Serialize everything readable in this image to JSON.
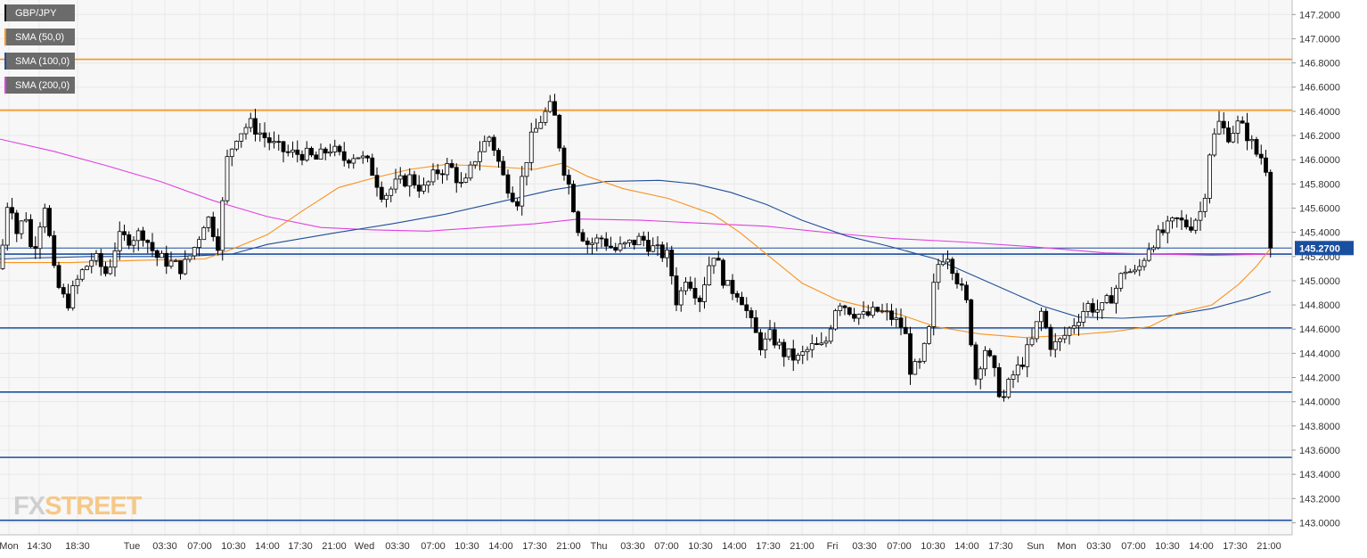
{
  "legend": [
    {
      "label": "GBP/JPY",
      "color": "#111111"
    },
    {
      "label": "SMA (50,0)",
      "color": "#f7931e"
    },
    {
      "label": "SMA (100,0)",
      "color": "#1f4e9b"
    },
    {
      "label": "SMA (200,0)",
      "color": "#e040e0"
    }
  ],
  "logo": {
    "part1": "FX",
    "part2": "STREET"
  },
  "current_price_label": "145.2700",
  "colors": {
    "resistance": "#f7931e",
    "support": "#1a4fa0",
    "sma50": "#f7931e",
    "sma100": "#1f4e9b",
    "sma200": "#e040e0",
    "candle_up": "#ffffff",
    "candle_down": "#000000",
    "grid": "#e8e8e8",
    "price_tag": "#1a4fa0"
  },
  "chart_data": {
    "type": "candlestick",
    "symbol": "GBP/JPY",
    "ylim": [
      142.9,
      147.32
    ],
    "y_ticks": [
      "147.2000",
      "147.0000",
      "146.8000",
      "146.6000",
      "146.4000",
      "146.2000",
      "146.0000",
      "145.8000",
      "145.6000",
      "145.4000",
      "145.2000",
      "145.0000",
      "144.8000",
      "144.6000",
      "144.4000",
      "144.2000",
      "144.0000",
      "143.8000",
      "143.6000",
      "143.4000",
      "143.2000",
      "143.0000"
    ],
    "x_ticks": [
      "Mon",
      "14:30",
      "18:30",
      "Tue",
      "03:30",
      "07:00",
      "10:30",
      "14:00",
      "17:30",
      "21:00",
      "Wed",
      "03:30",
      "07:00",
      "10:30",
      "14:00",
      "17:30",
      "21:00",
      "Thu",
      "03:30",
      "07:00",
      "10:30",
      "14:00",
      "17:30",
      "21:00",
      "Fri",
      "03:30",
      "07:00",
      "10:30",
      "14:00",
      "17:30",
      "Sun",
      "Mon",
      "03:30",
      "07:00",
      "10:30",
      "14:00",
      "17:30",
      "21:00"
    ],
    "resistance_levels": [
      146.83,
      146.41
    ],
    "support_levels": [
      145.22,
      144.61,
      144.08,
      143.54,
      143.02
    ],
    "current_price": 145.27,
    "price_path": [
      [
        0,
        145.1
      ],
      [
        10,
        145.75
      ],
      [
        20,
        145.35
      ],
      [
        28,
        145.6
      ],
      [
        36,
        145.2
      ],
      [
        50,
        145.65
      ],
      [
        62,
        145.0
      ],
      [
        75,
        144.8
      ],
      [
        90,
        145.05
      ],
      [
        105,
        145.2
      ],
      [
        120,
        145.05
      ],
      [
        132,
        145.35
      ],
      [
        145,
        145.35
      ],
      [
        160,
        145.4
      ],
      [
        175,
        145.2
      ],
      [
        190,
        145.15
      ],
      [
        205,
        145.1
      ],
      [
        220,
        145.3
      ],
      [
        232,
        145.55
      ],
      [
        245,
        145.3
      ],
      [
        255,
        146.0
      ],
      [
        265,
        146.2
      ],
      [
        280,
        146.3
      ],
      [
        295,
        146.2
      ],
      [
        310,
        146.1
      ],
      [
        325,
        146.05
      ],
      [
        340,
        146.05
      ],
      [
        355,
        146.0
      ],
      [
        370,
        146.1
      ],
      [
        385,
        146.0
      ],
      [
        400,
        146.05
      ],
      [
        415,
        145.95
      ],
      [
        430,
        145.7
      ],
      [
        445,
        145.8
      ],
      [
        460,
        145.85
      ],
      [
        475,
        145.75
      ],
      [
        490,
        145.9
      ],
      [
        505,
        145.95
      ],
      [
        520,
        145.75
      ],
      [
        535,
        146.05
      ],
      [
        550,
        146.2
      ],
      [
        565,
        145.85
      ],
      [
        580,
        145.65
      ],
      [
        595,
        146.15
      ],
      [
        608,
        146.35
      ],
      [
        620,
        146.45
      ],
      [
        632,
        145.95
      ],
      [
        640,
        145.75
      ],
      [
        648,
        145.45
      ],
      [
        660,
        145.3
      ],
      [
        675,
        145.35
      ],
      [
        690,
        145.25
      ],
      [
        705,
        145.3
      ],
      [
        720,
        145.35
      ],
      [
        735,
        145.25
      ],
      [
        750,
        145.2
      ],
      [
        760,
        144.8
      ],
      [
        770,
        145.05
      ],
      [
        785,
        144.85
      ],
      [
        800,
        145.25
      ],
      [
        815,
        144.95
      ],
      [
        830,
        144.9
      ],
      [
        845,
        144.6
      ],
      [
        855,
        144.45
      ],
      [
        865,
        144.55
      ],
      [
        880,
        144.4
      ],
      [
        895,
        144.35
      ],
      [
        910,
        144.45
      ],
      [
        925,
        144.45
      ],
      [
        940,
        144.85
      ],
      [
        955,
        144.75
      ],
      [
        970,
        144.7
      ],
      [
        985,
        144.75
      ],
      [
        1000,
        144.7
      ],
      [
        1015,
        144.6
      ],
      [
        1022,
        144.25
      ],
      [
        1032,
        144.3
      ],
      [
        1042,
        144.55
      ],
      [
        1050,
        145.1
      ],
      [
        1062,
        145.25
      ],
      [
        1075,
        145.0
      ],
      [
        1085,
        144.8
      ],
      [
        1095,
        144.2
      ],
      [
        1105,
        144.45
      ],
      [
        1115,
        144.25
      ],
      [
        1125,
        144.0
      ],
      [
        1135,
        144.2
      ],
      [
        1145,
        144.3
      ],
      [
        1158,
        144.5
      ],
      [
        1168,
        144.75
      ],
      [
        1180,
        144.45
      ],
      [
        1190,
        144.5
      ],
      [
        1205,
        144.65
      ],
      [
        1220,
        144.8
      ],
      [
        1235,
        144.75
      ],
      [
        1250,
        144.9
      ],
      [
        1262,
        145.1
      ],
      [
        1275,
        145.05
      ],
      [
        1290,
        145.3
      ],
      [
        1305,
        145.4
      ],
      [
        1320,
        145.5
      ],
      [
        1335,
        145.45
      ],
      [
        1350,
        145.6
      ],
      [
        1358,
        146.1
      ],
      [
        1368,
        146.3
      ],
      [
        1378,
        146.2
      ],
      [
        1390,
        146.3
      ],
      [
        1400,
        146.2
      ],
      [
        1410,
        146.05
      ],
      [
        1420,
        146.0
      ],
      [
        1426,
        145.27
      ]
    ],
    "sma50": [
      [
        0,
        145.15
      ],
      [
        80,
        145.15
      ],
      [
        160,
        145.17
      ],
      [
        230,
        145.18
      ],
      [
        260,
        145.26
      ],
      [
        300,
        145.38
      ],
      [
        340,
        145.58
      ],
      [
        380,
        145.77
      ],
      [
        420,
        145.85
      ],
      [
        460,
        145.92
      ],
      [
        500,
        145.96
      ],
      [
        540,
        145.95
      ],
      [
        600,
        145.92
      ],
      [
        630,
        145.97
      ],
      [
        660,
        145.86
      ],
      [
        700,
        145.76
      ],
      [
        750,
        145.68
      ],
      [
        800,
        145.55
      ],
      [
        830,
        145.4
      ],
      [
        860,
        145.22
      ],
      [
        900,
        144.98
      ],
      [
        940,
        144.84
      ],
      [
        980,
        144.77
      ],
      [
        1010,
        144.72
      ],
      [
        1050,
        144.62
      ],
      [
        1100,
        144.56
      ],
      [
        1150,
        144.53
      ],
      [
        1200,
        144.55
      ],
      [
        1250,
        144.58
      ],
      [
        1290,
        144.62
      ],
      [
        1320,
        144.73
      ],
      [
        1360,
        144.8
      ],
      [
        1390,
        144.97
      ],
      [
        1410,
        145.12
      ],
      [
        1426,
        145.27
      ]
    ],
    "sma100": [
      [
        0,
        145.18
      ],
      [
        100,
        145.2
      ],
      [
        200,
        145.2
      ],
      [
        260,
        145.22
      ],
      [
        300,
        145.3
      ],
      [
        380,
        145.4
      ],
      [
        440,
        145.47
      ],
      [
        500,
        145.55
      ],
      [
        560,
        145.65
      ],
      [
        620,
        145.75
      ],
      [
        680,
        145.82
      ],
      [
        740,
        145.83
      ],
      [
        780,
        145.8
      ],
      [
        820,
        145.73
      ],
      [
        860,
        145.63
      ],
      [
        900,
        145.5
      ],
      [
        950,
        145.37
      ],
      [
        1000,
        145.28
      ],
      [
        1050,
        145.18
      ],
      [
        1090,
        145.05
      ],
      [
        1130,
        144.92
      ],
      [
        1170,
        144.79
      ],
      [
        1210,
        144.7
      ],
      [
        1260,
        144.69
      ],
      [
        1310,
        144.71
      ],
      [
        1360,
        144.77
      ],
      [
        1400,
        144.85
      ],
      [
        1426,
        144.91
      ]
    ],
    "sma200": [
      [
        0,
        146.17
      ],
      [
        60,
        146.07
      ],
      [
        120,
        145.95
      ],
      [
        180,
        145.82
      ],
      [
        240,
        145.66
      ],
      [
        300,
        145.53
      ],
      [
        360,
        145.44
      ],
      [
        420,
        145.42
      ],
      [
        480,
        145.41
      ],
      [
        540,
        145.44
      ],
      [
        600,
        145.47
      ],
      [
        650,
        145.51
      ],
      [
        720,
        145.5
      ],
      [
        800,
        145.47
      ],
      [
        860,
        145.45
      ],
      [
        940,
        145.39
      ],
      [
        1000,
        145.35
      ],
      [
        1080,
        145.32
      ],
      [
        1160,
        145.28
      ],
      [
        1240,
        145.23
      ],
      [
        1300,
        145.22
      ],
      [
        1360,
        145.21
      ],
      [
        1426,
        145.22
      ]
    ]
  }
}
